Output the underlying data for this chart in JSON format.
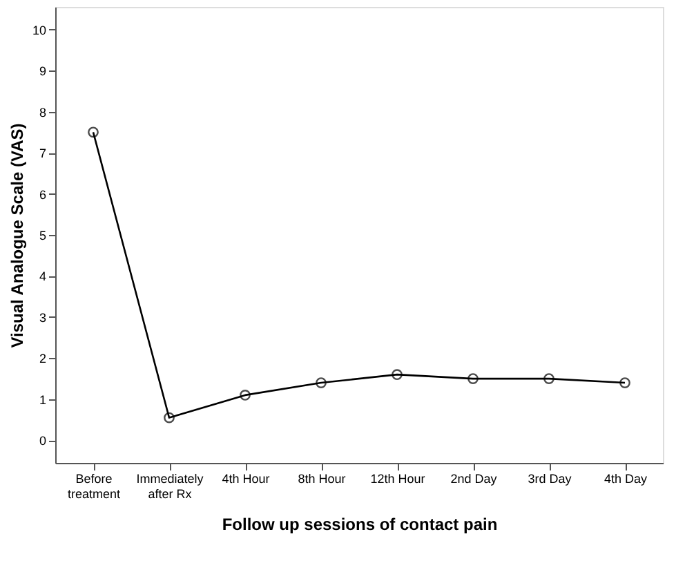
{
  "chart_data": {
    "type": "line",
    "xlabel": "Follow up sessions of contact pain",
    "ylabel": "Visual Analogue Scale (VAS)",
    "categories": [
      "Before\ntreatment",
      "Immediately\nafter Rx",
      "4th Hour",
      "8th Hour",
      "12th Hour",
      "2nd Day",
      "3rd Day",
      "4th Day"
    ],
    "series": [
      {
        "color": "#000000",
        "values": [
          7.5,
          0.55,
          1.1,
          1.4,
          1.6,
          1.5,
          1.5,
          1.4
        ]
      }
    ],
    "ylim": [
      -0.55,
      10.55
    ],
    "yticks": [
      0,
      1,
      2,
      3,
      4,
      5,
      6,
      7,
      8,
      9,
      10
    ],
    "grid": false,
    "legend": false,
    "marker": "circle",
    "line_style": "solid"
  }
}
